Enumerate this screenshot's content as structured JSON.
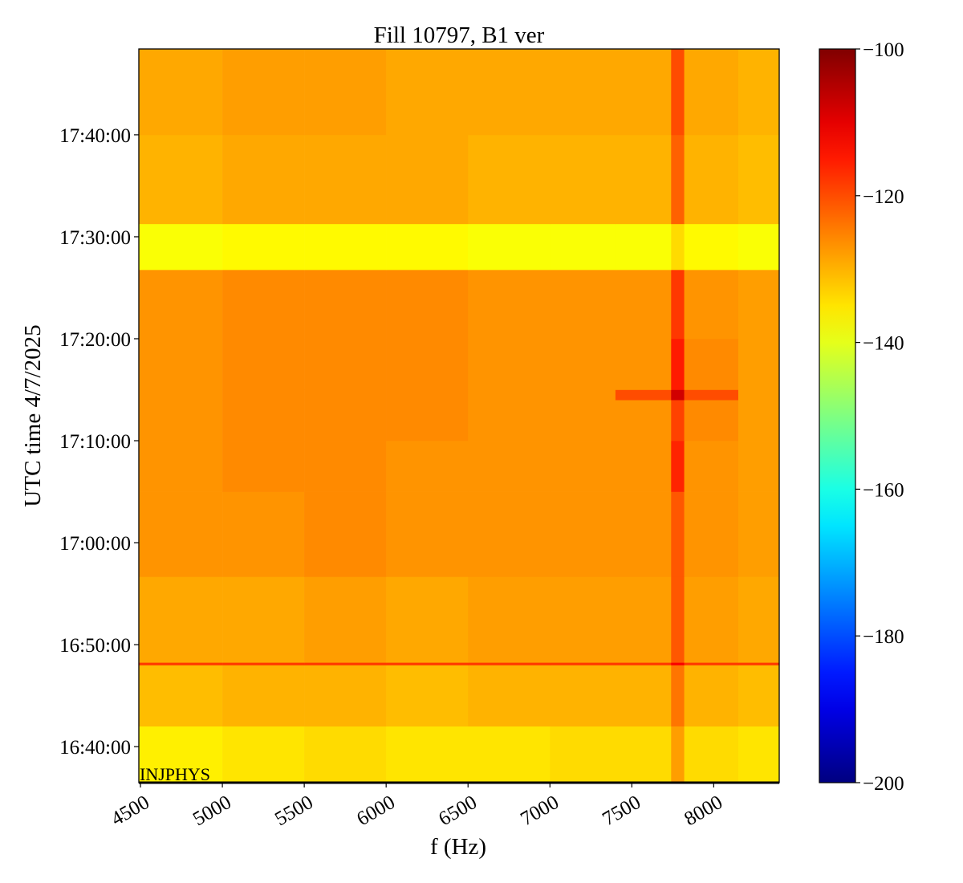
{
  "chart_data": {
    "type": "heatmap",
    "title": "Fill 10797, B1 ver",
    "x_label": "f (Hz)",
    "y_label": "UTC time 4/7/2025",
    "annotation": "INJPHYS",
    "colormap": "jet",
    "x_edges": [
      4490,
      5000,
      5500,
      6000,
      6500,
      7000,
      7400,
      7740,
      7820,
      8150,
      8400
    ],
    "y_edges": [
      59788,
      60120,
      60480,
      60495,
      61000,
      61500,
      61800,
      62040,
      62100,
      62400,
      62806,
      63076,
      63600,
      64105
    ],
    "z": [
      [
        -136,
        -135,
        -134,
        -135,
        -135,
        -134,
        -134,
        -128,
        -134,
        -135
      ],
      [
        -131,
        -130,
        -130,
        -131,
        -130,
        -130,
        -130,
        -124,
        -130,
        -131
      ],
      [
        -118,
        -118,
        -118,
        -118,
        -118,
        -118,
        -118,
        -112,
        -118,
        -118
      ],
      [
        -129,
        -129,
        -128,
        -129,
        -128,
        -128,
        -128,
        -121,
        -128,
        -129
      ],
      [
        -127,
        -127,
        -126,
        -127,
        -127,
        -127,
        -127,
        -121,
        -127,
        -128
      ],
      [
        -127,
        -126,
        -126,
        -127,
        -127,
        -127,
        -127,
        -116,
        -127,
        -128
      ],
      [
        -127,
        -126,
        -126,
        -126,
        -127,
        -127,
        -127,
        -119,
        -126,
        -128
      ],
      [
        -127,
        -126,
        -126,
        -126,
        -127,
        -127,
        -120,
        -108,
        -120,
        -128
      ],
      [
        -127,
        -126,
        -126,
        -126,
        -127,
        -127,
        -127,
        -115,
        -126,
        -128
      ],
      [
        -127,
        -126,
        -126,
        -126,
        -127,
        -127,
        -127,
        -118,
        -127,
        -128
      ],
      [
        -138,
        -137,
        -137,
        -137,
        -138,
        -138,
        -138,
        -134,
        -137,
        -138
      ],
      [
        -130,
        -129,
        -129,
        -129,
        -130,
        -130,
        -130,
        -122,
        -130,
        -131
      ],
      [
        -129,
        -128,
        -128,
        -129,
        -129,
        -129,
        -129,
        -120,
        -129,
        -130
      ]
    ],
    "xlim": [
      4490,
      8400
    ],
    "xticks": [
      4500,
      5000,
      5500,
      6000,
      6500,
      7000,
      7500,
      8000
    ],
    "ylim": [
      59788,
      64105
    ],
    "yticks": [
      {
        "value": 60000,
        "label": "16:40:00"
      },
      {
        "value": 60600,
        "label": "16:50:00"
      },
      {
        "value": 61200,
        "label": "17:00:00"
      },
      {
        "value": 61800,
        "label": "17:10:00"
      },
      {
        "value": 62400,
        "label": "17:20:00"
      },
      {
        "value": 63000,
        "label": "17:30:00"
      },
      {
        "value": 63600,
        "label": "17:40:00"
      }
    ],
    "zlim": [
      -200,
      -100
    ],
    "zticks": [
      {
        "value": -100,
        "label": "−100"
      },
      {
        "value": -120,
        "label": "−120"
      },
      {
        "value": -140,
        "label": "−140"
      },
      {
        "value": -160,
        "label": "−160"
      },
      {
        "value": -180,
        "label": "−180"
      },
      {
        "value": -200,
        "label": "−200"
      }
    ]
  }
}
